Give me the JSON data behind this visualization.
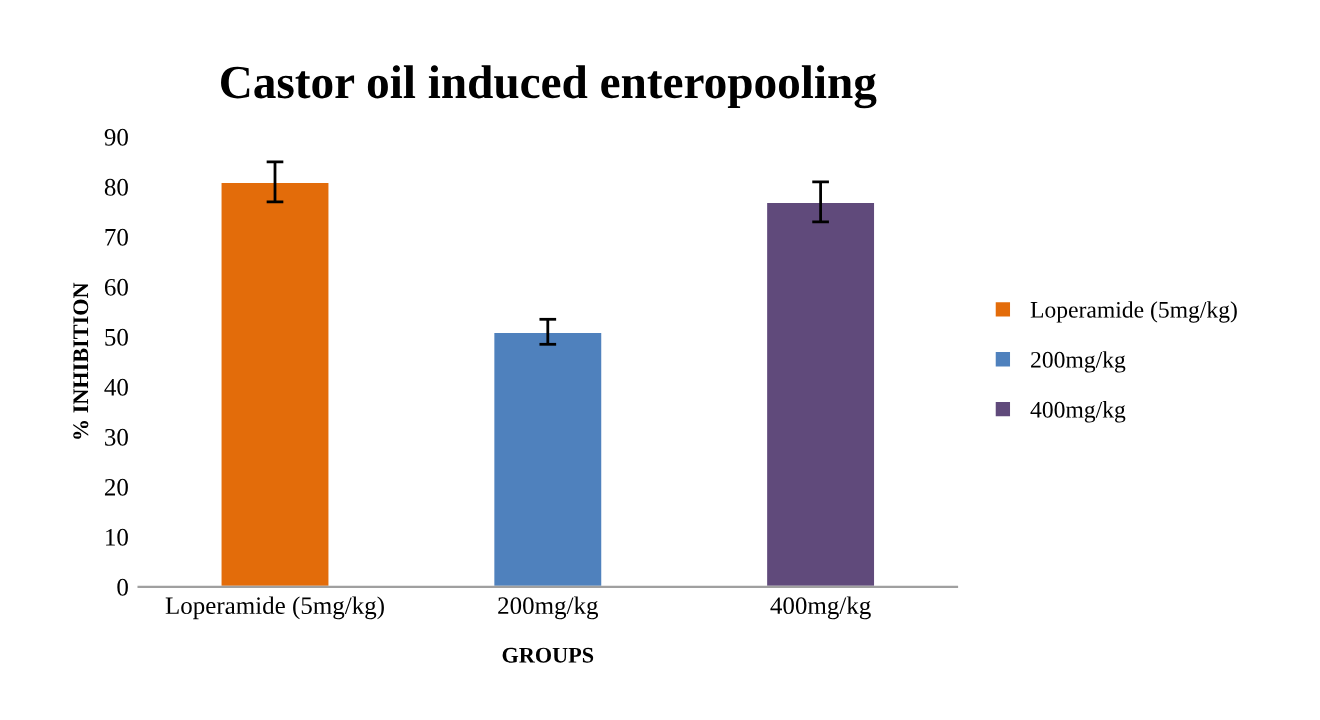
{
  "chart_data": {
    "type": "bar",
    "title": "Castor oil induced enteropooling",
    "xlabel": "GROUPS",
    "ylabel": "% INHIBITION",
    "categories": [
      "Loperamide (5mg/kg)",
      "200mg/kg",
      "400mg/kg"
    ],
    "stacked": true,
    "series": [
      {
        "name": "Loperamide (5mg/kg)",
        "color": "#e36c0a",
        "values": [
          81,
          null,
          null
        ],
        "errors": [
          4,
          null,
          null
        ]
      },
      {
        "name": "200mg/kg",
        "color": "#4f81bd",
        "values": [
          null,
          51,
          null
        ],
        "errors": [
          null,
          2.5,
          null
        ]
      },
      {
        "name": "400mg/kg",
        "color": "#604a7b",
        "values": [
          null,
          null,
          77
        ],
        "errors": [
          null,
          null,
          4
        ]
      }
    ],
    "ylim": [
      0,
      90
    ],
    "yticks": [
      0,
      10,
      20,
      30,
      40,
      50,
      60,
      70,
      80,
      90
    ],
    "legend": "right"
  }
}
